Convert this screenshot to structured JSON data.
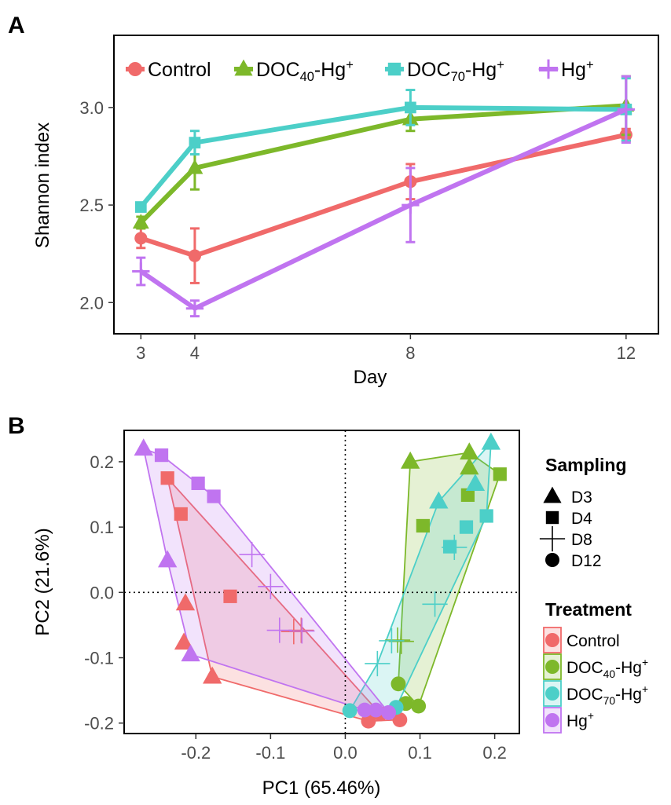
{
  "colors": {
    "Control": "#F06A6A",
    "DOC40-Hg+": "#7DB82A",
    "DOC70-Hg+": "#4CCFC8",
    "Hg+": "#C074F0"
  },
  "panelA": {
    "label": "A"
  },
  "panelB": {
    "label": "B"
  },
  "chart_data": [
    {
      "type": "line",
      "panel": "A",
      "xlabel": "Day",
      "ylabel": "Shannon index",
      "x": [
        3,
        4,
        8,
        12
      ],
      "xticks": [
        "3",
        "4",
        "8",
        "12"
      ],
      "yticks": [
        "2.0",
        "2.5",
        "3.0"
      ],
      "xlim": [
        2.5,
        12.6
      ],
      "ylim": [
        1.84,
        3.37
      ],
      "legend": {
        "position": "top-left",
        "entries": [
          {
            "main": "Control",
            "sub": "",
            "sup": "",
            "tail": ""
          },
          {
            "main": "DOC",
            "sub": "40",
            "sup": "+",
            "tail": "-Hg"
          },
          {
            "main": "DOC",
            "sub": "70",
            "sup": "+",
            "tail": "-Hg"
          },
          {
            "main": "Hg",
            "sub": "",
            "sup": "+",
            "tail": ""
          }
        ]
      },
      "series": [
        {
          "name": "Control",
          "values": [
            2.33,
            2.24,
            2.62,
            2.86
          ],
          "errors": [
            0.05,
            0.14,
            0.09,
            0.03
          ]
        },
        {
          "name": "DOC40-Hg+",
          "values": [
            2.41,
            2.69,
            2.94,
            3.01
          ],
          "errors": [
            0.03,
            0.11,
            0.06,
            0.15
          ]
        },
        {
          "name": "DOC70-Hg+",
          "values": [
            2.49,
            2.82,
            3.0,
            2.99
          ],
          "errors": [
            0.02,
            0.06,
            0.09,
            0.16
          ]
        },
        {
          "name": "Hg+",
          "values": [
            2.16,
            1.97,
            2.5,
            2.99
          ],
          "errors": [
            0.07,
            0.04,
            0.19,
            0.17
          ]
        }
      ]
    },
    {
      "type": "scatter",
      "panel": "B",
      "xlabel": "PC1 (65.46%)",
      "ylabel": "PC2 (21.6%)",
      "xticks": [
        "-0.2",
        "-0.1",
        "0.0",
        "0.1",
        "0.2"
      ],
      "yticks": [
        "-0.2",
        "-0.1",
        "0.0",
        "0.1",
        "0.2"
      ],
      "xlim": [
        -0.296,
        0.233
      ],
      "ylim": [
        -0.216,
        0.248
      ],
      "reference_lines": {
        "x": 0,
        "y": 0,
        "style": "dotted"
      },
      "legend_sampling": {
        "title": "Sampling",
        "entries": [
          "D3",
          "D4",
          "D8",
          "D12"
        ]
      },
      "legend_treatment": {
        "title": "Treatment",
        "entries": [
          {
            "main": "Control",
            "sub": "",
            "sup": "",
            "tail": ""
          },
          {
            "main": "DOC",
            "sub": "40",
            "sup": "+",
            "tail": "-Hg"
          },
          {
            "main": "DOC",
            "sub": "70",
            "sup": "+",
            "tail": "-Hg"
          },
          {
            "main": "Hg",
            "sub": "",
            "sup": "+",
            "tail": ""
          }
        ]
      },
      "groups": [
        {
          "name": "Control",
          "hull": [
            [
              -0.238,
              0.175
            ],
            [
              -0.178,
              -0.129
            ],
            [
              0.031,
              -0.197
            ],
            [
              0.073,
              -0.195
            ],
            [
              0.047,
              -0.186
            ]
          ],
          "points": [
            {
              "s": "D3",
              "x": -0.214,
              "y": -0.017
            },
            {
              "s": "D3",
              "x": -0.216,
              "y": -0.077
            },
            {
              "s": "D3",
              "x": -0.178,
              "y": -0.129
            },
            {
              "s": "D4",
              "x": -0.238,
              "y": 0.175
            },
            {
              "s": "D4",
              "x": -0.22,
              "y": 0.12
            },
            {
              "s": "D4",
              "x": -0.154,
              "y": -0.006
            },
            {
              "s": "D8",
              "x": -0.069,
              "y": -0.06
            },
            {
              "s": "D8",
              "x": -0.059,
              "y": -0.058
            },
            {
              "s": "D12",
              "x": 0.031,
              "y": -0.197
            },
            {
              "s": "D12",
              "x": 0.047,
              "y": -0.186
            },
            {
              "s": "D12",
              "x": 0.073,
              "y": -0.195
            }
          ]
        },
        {
          "name": "DOC40-Hg+",
          "hull": [
            [
              0.087,
              0.2
            ],
            [
              0.166,
              0.214
            ],
            [
              0.207,
              0.181
            ],
            [
              0.098,
              -0.174
            ],
            [
              0.071,
              -0.14
            ]
          ],
          "points": [
            {
              "s": "D3",
              "x": 0.087,
              "y": 0.2
            },
            {
              "s": "D3",
              "x": 0.166,
              "y": 0.214
            },
            {
              "s": "D3",
              "x": 0.166,
              "y": 0.191
            },
            {
              "s": "D4",
              "x": 0.207,
              "y": 0.181
            },
            {
              "s": "D4",
              "x": 0.164,
              "y": 0.149
            },
            {
              "s": "D4",
              "x": 0.104,
              "y": 0.102
            },
            {
              "s": "D8",
              "x": 0.075,
              "y": -0.075
            },
            {
              "s": "D8",
              "x": 0.07,
              "y": -0.073
            },
            {
              "s": "D12",
              "x": 0.071,
              "y": -0.14
            },
            {
              "s": "D12",
              "x": 0.081,
              "y": -0.17
            },
            {
              "s": "D12",
              "x": 0.098,
              "y": -0.174
            }
          ]
        },
        {
          "name": "DOC70-Hg+",
          "hull": [
            [
              0.195,
              0.229
            ],
            [
              0.189,
              0.117
            ],
            [
              0.068,
              -0.176
            ],
            [
              0.006,
              -0.181
            ],
            [
              0.043,
              -0.109
            ],
            [
              0.125,
              0.139
            ]
          ],
          "points": [
            {
              "s": "D3",
              "x": 0.195,
              "y": 0.229
            },
            {
              "s": "D3",
              "x": 0.174,
              "y": 0.166
            },
            {
              "s": "D3",
              "x": 0.125,
              "y": 0.139
            },
            {
              "s": "D4",
              "x": 0.189,
              "y": 0.117
            },
            {
              "s": "D4",
              "x": 0.162,
              "y": 0.1
            },
            {
              "s": "D4",
              "x": 0.14,
              "y": 0.07
            },
            {
              "s": "D8",
              "x": 0.146,
              "y": 0.069
            },
            {
              "s": "D8",
              "x": 0.12,
              "y": -0.018
            },
            {
              "s": "D8",
              "x": 0.062,
              "y": -0.074
            },
            {
              "s": "D8",
              "x": 0.043,
              "y": -0.109
            },
            {
              "s": "D12",
              "x": 0.006,
              "y": -0.181
            },
            {
              "s": "D12",
              "x": 0.068,
              "y": -0.176
            }
          ]
        },
        {
          "name": "Hg+",
          "hull": [
            [
              -0.27,
              0.22
            ],
            [
              -0.246,
              0.21
            ],
            [
              -0.176,
              0.147
            ],
            [
              0.058,
              -0.184
            ],
            [
              0.026,
              -0.18
            ],
            [
              -0.207,
              -0.095
            ],
            [
              -0.238,
              0.049
            ]
          ],
          "points": [
            {
              "s": "D3",
              "x": -0.27,
              "y": 0.22
            },
            {
              "s": "D3",
              "x": -0.238,
              "y": 0.049
            },
            {
              "s": "D3",
              "x": -0.207,
              "y": -0.095
            },
            {
              "s": "D4",
              "x": -0.246,
              "y": 0.21
            },
            {
              "s": "D4",
              "x": -0.197,
              "y": 0.167
            },
            {
              "s": "D4",
              "x": -0.176,
              "y": 0.147
            },
            {
              "s": "D8",
              "x": -0.125,
              "y": 0.058
            },
            {
              "s": "D8",
              "x": -0.1,
              "y": 0.009
            },
            {
              "s": "D8",
              "x": -0.088,
              "y": -0.058
            },
            {
              "s": "D8",
              "x": -0.058,
              "y": -0.059
            },
            {
              "s": "D12",
              "x": 0.026,
              "y": -0.18
            },
            {
              "s": "D12",
              "x": 0.041,
              "y": -0.18
            },
            {
              "s": "D12",
              "x": 0.058,
              "y": -0.184
            }
          ]
        }
      ]
    }
  ]
}
